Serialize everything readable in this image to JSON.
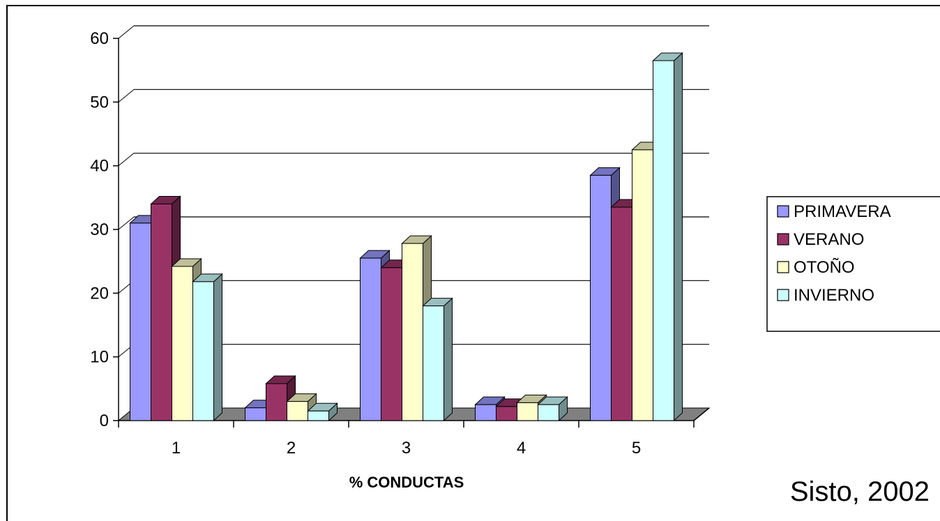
{
  "chart_data": {
    "type": "bar",
    "categories": [
      "1",
      "2",
      "3",
      "4",
      "5"
    ],
    "series": [
      {
        "name": "PRIMAVERA",
        "values": [
          31,
          2,
          25.5,
          2.5,
          38.5
        ],
        "color": "#9999ff"
      },
      {
        "name": "VERANO",
        "values": [
          34,
          5.8,
          24,
          2.2,
          33.5
        ],
        "color": "#993366"
      },
      {
        "name": "OTOÑO",
        "values": [
          24.2,
          3,
          27.8,
          2.8,
          42.5
        ],
        "color": "#ffffcc"
      },
      {
        "name": "INVIERNO",
        "values": [
          21.8,
          1.5,
          18,
          2.5,
          56.5
        ],
        "color": "#ccffff"
      }
    ],
    "title": "",
    "xlabel": "% CONDUCTAS",
    "ylabel": "",
    "ylim": [
      0,
      60
    ],
    "yticks": [
      0,
      10,
      20,
      30,
      40,
      50,
      60
    ],
    "grid": true,
    "legend_position": "right",
    "three_d": true,
    "floor_color": "#808080"
  },
  "source": "Sisto, 2002"
}
